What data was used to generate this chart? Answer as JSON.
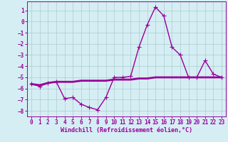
{
  "x": [
    0,
    1,
    2,
    3,
    4,
    5,
    6,
    7,
    8,
    9,
    10,
    11,
    12,
    13,
    14,
    15,
    16,
    17,
    18,
    19,
    20,
    21,
    22,
    23
  ],
  "y_line1": [
    -5.6,
    -5.8,
    -5.5,
    -5.4,
    -6.9,
    -6.8,
    -7.4,
    -7.7,
    -7.9,
    -6.8,
    -5.0,
    -5.0,
    -4.9,
    -2.3,
    -0.3,
    1.3,
    0.5,
    -2.3,
    -3.0,
    -5.0,
    -5.0,
    -3.5,
    -4.7,
    -5.0
  ],
  "y_line2": [
    -5.6,
    -5.7,
    -5.5,
    -5.4,
    -5.4,
    -5.4,
    -5.3,
    -5.3,
    -5.3,
    -5.3,
    -5.2,
    -5.2,
    -5.2,
    -5.1,
    -5.1,
    -5.0,
    -5.0,
    -5.0,
    -5.0,
    -5.0,
    -5.0,
    -5.0,
    -5.0,
    -5.0
  ],
  "line_color": "#990099",
  "background_color": "#d5eef4",
  "grid_color": "#aacccc",
  "xlabel": "Windchill (Refroidissement éolien,°C)",
  "xlim": [
    -0.5,
    23.5
  ],
  "ylim": [
    -8.5,
    1.8
  ],
  "yticks": [
    1,
    0,
    -1,
    -2,
    -3,
    -4,
    -5,
    -6,
    -7,
    -8
  ],
  "xticks": [
    0,
    1,
    2,
    3,
    4,
    5,
    6,
    7,
    8,
    9,
    10,
    11,
    12,
    13,
    14,
    15,
    16,
    17,
    18,
    19,
    20,
    21,
    22,
    23
  ],
  "marker": "+",
  "markersize": 4,
  "linewidth": 1.0,
  "xlabel_fontsize": 6,
  "tick_fontsize": 5.5
}
